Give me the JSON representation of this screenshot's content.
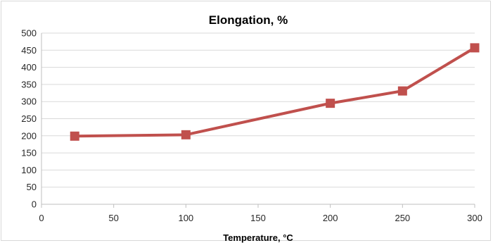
{
  "chart_data": {
    "type": "line",
    "title": "Elongation, %",
    "xlabel": "Temperature, °C",
    "ylabel": "",
    "xlim": [
      0,
      300
    ],
    "ylim": [
      0,
      500
    ],
    "x_ticks": [
      "0",
      "50",
      "100",
      "150",
      "200",
      "250",
      "300"
    ],
    "y_ticks": [
      "0",
      "50",
      "100",
      "150",
      "200",
      "250",
      "300",
      "350",
      "400",
      "450",
      "500"
    ],
    "grid": true,
    "legend": "none",
    "marker": "square",
    "series": [
      {
        "color": "#c0504d",
        "x": [
          23,
          100,
          200,
          250,
          300
        ],
        "values": [
          199,
          203,
          295,
          331,
          457
        ]
      }
    ]
  }
}
